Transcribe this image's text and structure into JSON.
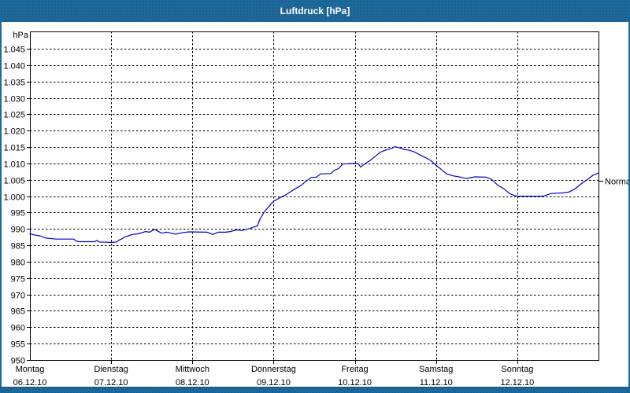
{
  "window": {
    "title": "Luftdruck [hPa]"
  },
  "frame": {
    "accent_color": "#1e699c"
  },
  "chart_data": {
    "type": "line",
    "title": "Luftdruck [hPa]",
    "unit_label": "hPa",
    "series_color": "#0000cc",
    "grid": "dashed black; horizontal every 5 hPa, vertical at each day boundary",
    "legend_position": "none",
    "ylim": [
      950,
      1050.3
    ],
    "ytick_step": 5,
    "ytick_labels": [
      "1.045",
      "1.040",
      "1.035",
      "1.030",
      "1.025",
      "1.020",
      "1.015",
      "1.010",
      "1.005",
      "1.000",
      "995",
      "990",
      "985",
      "980",
      "975",
      "970",
      "965",
      "960",
      "955",
      "950"
    ],
    "x_range_hours": [
      0,
      168
    ],
    "x_days": [
      {
        "name": "Montag",
        "date": "06.12.10"
      },
      {
        "name": "Dienstag",
        "date": "07.12.10"
      },
      {
        "name": "Mittwoch",
        "date": "08.12.10"
      },
      {
        "name": "Donnerstag",
        "date": "09.12.10"
      },
      {
        "name": "Freitag",
        "date": "10.12.10"
      },
      {
        "name": "Samstag",
        "date": "11.12.10"
      },
      {
        "name": "Sonntag",
        "date": "12.12.10"
      }
    ],
    "normal_marker": {
      "label": "Normal",
      "value": 1004.6
    },
    "points_hours_hpa": [
      [
        0,
        988.5
      ],
      [
        1.6,
        988.1
      ],
      [
        3,
        987.9
      ],
      [
        4.7,
        987.2
      ],
      [
        7.7,
        986.9
      ],
      [
        13,
        986.9
      ],
      [
        13.5,
        986.4
      ],
      [
        14.4,
        986.1
      ],
      [
        19.1,
        986.1
      ],
      [
        19.8,
        986.5
      ],
      [
        20.5,
        986.0
      ],
      [
        24,
        985.9
      ],
      [
        25.6,
        986.0
      ],
      [
        26.1,
        986.5
      ],
      [
        27.2,
        987.0
      ],
      [
        27.9,
        987.5
      ],
      [
        29.1,
        987.9
      ],
      [
        30.2,
        988.3
      ],
      [
        31.9,
        988.5
      ],
      [
        34.2,
        989.2
      ],
      [
        35.4,
        989.0
      ],
      [
        36.8,
        989.9
      ],
      [
        38.9,
        988.7
      ],
      [
        40.5,
        989.0
      ],
      [
        43,
        988.4
      ],
      [
        45.4,
        988.9
      ],
      [
        47,
        989.1
      ],
      [
        52.4,
        989.0
      ],
      [
        54,
        988.3
      ],
      [
        55.6,
        989.0
      ],
      [
        57.9,
        989.0
      ],
      [
        59.3,
        989.2
      ],
      [
        61,
        989.7
      ],
      [
        62.6,
        989.5
      ],
      [
        64.9,
        990.1
      ],
      [
        66.1,
        990.6
      ],
      [
        67.2,
        990.9
      ],
      [
        67.9,
        992.8
      ],
      [
        69.1,
        995.0
      ],
      [
        70.3,
        996.5
      ],
      [
        71.4,
        997.8
      ],
      [
        72.1,
        998.5
      ],
      [
        73.8,
        999.5
      ],
      [
        75.6,
        1000.4
      ],
      [
        78,
        1002.0
      ],
      [
        80.3,
        1003.4
      ],
      [
        81.4,
        1004.4
      ],
      [
        83.1,
        1005.7
      ],
      [
        84.7,
        1005.8
      ],
      [
        85.9,
        1006.8
      ],
      [
        88.9,
        1006.9
      ],
      [
        90,
        1007.9
      ],
      [
        91.2,
        1008.4
      ],
      [
        92.4,
        1009.8
      ],
      [
        95.9,
        1010.0
      ],
      [
        97,
        1009.9
      ],
      [
        97.7,
        1008.9
      ],
      [
        98.9,
        1009.8
      ],
      [
        100.5,
        1010.9
      ],
      [
        102.1,
        1012.2
      ],
      [
        103.5,
        1013.4
      ],
      [
        105.2,
        1014.1
      ],
      [
        106.8,
        1014.5
      ],
      [
        107.7,
        1015.1
      ],
      [
        109.1,
        1014.8
      ],
      [
        110.5,
        1014.3
      ],
      [
        112.2,
        1014.0
      ],
      [
        113.8,
        1013.4
      ],
      [
        115.2,
        1012.6
      ],
      [
        116.8,
        1011.8
      ],
      [
        118.4,
        1010.9
      ],
      [
        119.8,
        1009.6
      ],
      [
        121.5,
        1008.2
      ],
      [
        123.1,
        1006.8
      ],
      [
        125,
        1006.2
      ],
      [
        127.3,
        1005.8
      ],
      [
        128.9,
        1005.4
      ],
      [
        131.5,
        1005.9
      ],
      [
        134.7,
        1005.8
      ],
      [
        136.3,
        1005.2
      ],
      [
        138.2,
        1003.4
      ],
      [
        140.1,
        1002.2
      ],
      [
        141.7,
        1000.8
      ],
      [
        143.1,
        1000.2
      ],
      [
        144,
        1000.0
      ],
      [
        151.7,
        1000.0
      ],
      [
        154,
        1000.8
      ],
      [
        157.5,
        1001.0
      ],
      [
        159.4,
        1001.3
      ],
      [
        161,
        1002.2
      ],
      [
        163.3,
        1004.1
      ],
      [
        164.9,
        1005.2
      ],
      [
        166.4,
        1006.4
      ],
      [
        168,
        1007.1
      ]
    ]
  }
}
